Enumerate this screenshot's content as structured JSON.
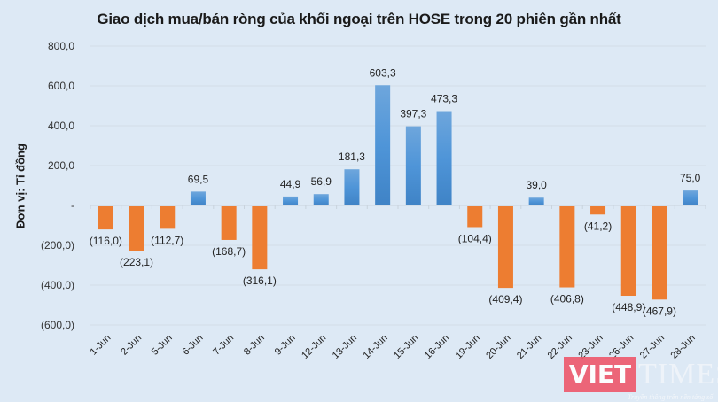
{
  "chart_data": {
    "type": "bar",
    "title": "Giao dịch mua/bán ròng của khối ngoại trên HOSE trong 20 phiên gần nhất",
    "xlabel": "",
    "ylabel": "Đơn vị: Tỉ đồng",
    "ylim": [
      -600,
      800
    ],
    "yticks": [
      800,
      600,
      400,
      200,
      0,
      -200,
      -400,
      -600
    ],
    "ytick_labels": [
      "800,0",
      "600,0",
      "400,0",
      "200,0",
      "-",
      "(200,0)",
      "(400,0)",
      "(600,0)"
    ],
    "grid": true,
    "legend": null,
    "categories": [
      "1-Jun",
      "2-Jun",
      "5-Jun",
      "6-Jun",
      "7-Jun",
      "8-Jun",
      "9-Jun",
      "12-Jun",
      "13-Jun",
      "14-Jun",
      "15-Jun",
      "16-Jun",
      "19-Jun",
      "20-Jun",
      "21-Jun",
      "22-Jun",
      "23-Jun",
      "26-Jun",
      "27-Jun",
      "28-Jun"
    ],
    "values": [
      -116.0,
      -223.1,
      -112.7,
      69.5,
      -168.7,
      -316.1,
      44.9,
      56.9,
      181.3,
      603.3,
      397.3,
      473.3,
      -104.4,
      -409.4,
      39.0,
      -406.8,
      -41.2,
      -448.9,
      -467.9,
      75.0
    ],
    "data_labels": [
      "(116,0)",
      "(223,1)",
      "(112,7)",
      "69,5",
      "(168,7)",
      "(316,1)",
      "44,9",
      "56,9",
      "181,3",
      "603,3",
      "397,3",
      "473,3",
      "(104,4)",
      "(409,4)",
      "39,0",
      "(406,8)",
      "(41,2)",
      "(448,9)",
      "(467,9)",
      "75,0"
    ],
    "colors": {
      "positive": "#4a8fd4",
      "negative": "#ed7d31"
    }
  },
  "watermark": {
    "brand_left": "VIET",
    "brand_right": "TIMES",
    "tagline": "Truyền thông trên nền tảng số"
  }
}
